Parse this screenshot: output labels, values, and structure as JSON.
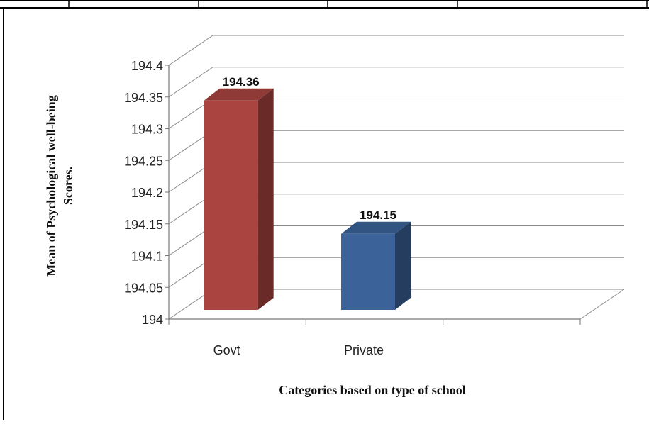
{
  "chart_data": {
    "type": "bar",
    "title": "",
    "categories": [
      "Govt",
      "Private"
    ],
    "series": [
      {
        "values": [
          194.36,
          194.15
        ],
        "colors": [
          "#a94441",
          "#3b639a"
        ]
      }
    ],
    "data_labels": [
      "194.36",
      "194.15"
    ],
    "xlabel": "Categories based on type of school",
    "ylabel_lines": [
      "Mean of Psychological well-being",
      "Scores."
    ],
    "ylim": [
      194,
      194.4
    ],
    "yticks": [
      194,
      194.05,
      194.1,
      194.15,
      194.2,
      194.25,
      194.3,
      194.35,
      194.4
    ],
    "ytick_labels": [
      "194",
      "194.05",
      "194.1",
      "194.15",
      "194.2",
      "194.25",
      "194.3",
      "194.35",
      "194.4"
    ],
    "grid": true,
    "style": "3d-column"
  }
}
